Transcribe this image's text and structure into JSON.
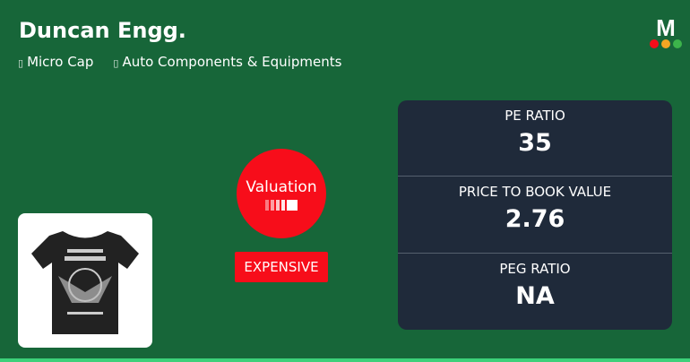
{
  "company": {
    "name": "Duncan Engg.",
    "tags": [
      {
        "icon": "tag-icon",
        "label": "Micro Cap"
      },
      {
        "icon": "tag-icon",
        "label": "Auto Components & Equipments"
      }
    ]
  },
  "logo": {
    "letter": "M",
    "dot_colors": [
      "#f70d1a",
      "#f5a623",
      "#3cb44b"
    ]
  },
  "valuation": {
    "label": "Valuation",
    "level": 5,
    "badge": "EXPENSIVE",
    "color": "#f70d1a"
  },
  "metrics": [
    {
      "label": "PE RATIO",
      "value": "35"
    },
    {
      "label": "PRICE TO BOOK VALUE",
      "value": "2.76"
    },
    {
      "label": "PEG RATIO",
      "value": "NA"
    }
  ]
}
